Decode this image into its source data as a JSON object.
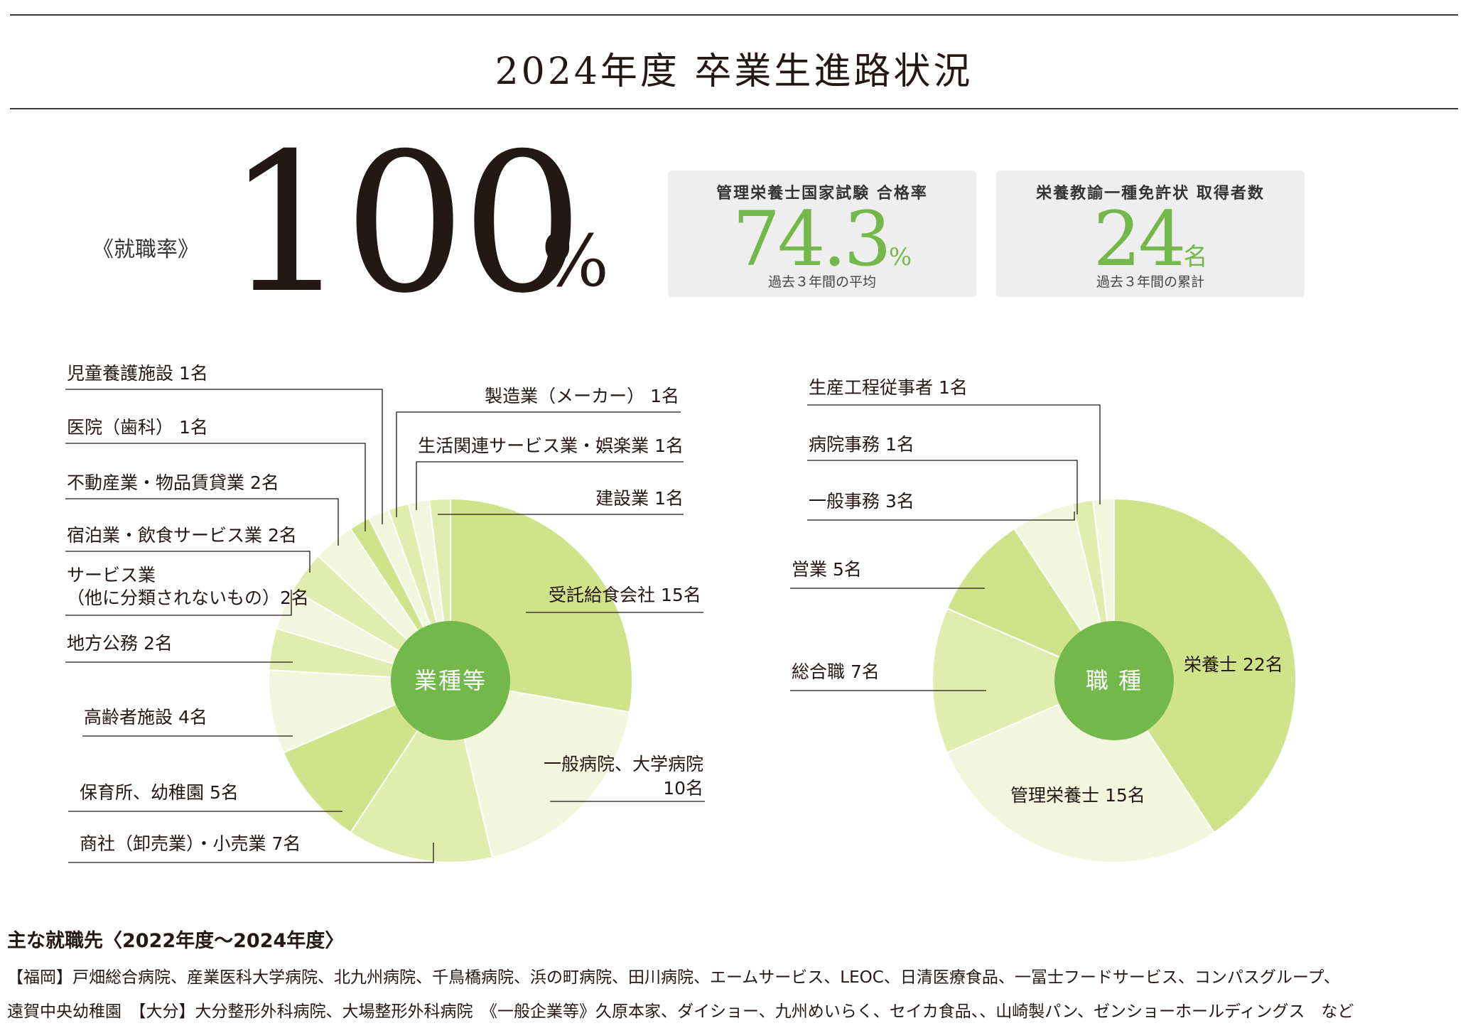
{
  "header": {
    "title": "2024年度 卒業生進路状況"
  },
  "employment_rate": {
    "label": "《就職率》",
    "value": "100",
    "unit": "%"
  },
  "stats": [
    {
      "title": "管理栄養士国家試験 合格率",
      "value": "74.3",
      "unit": "%",
      "note": "過去３年間の平均"
    },
    {
      "title": "栄養教諭一種免許状 取得者数",
      "value": "24",
      "unit": "名",
      "note": "過去３年間の累計"
    }
  ],
  "colors": {
    "accent": "#72b84b",
    "light": "#d0e28a",
    "lighter": "#e1ecaf",
    "pale": "#f2f6dc"
  },
  "chart_data": [
    {
      "type": "pie",
      "center_label": "業種等",
      "unit": "名",
      "slices": [
        {
          "label": "受託給食会社 15名",
          "value": 15
        },
        {
          "label": "一般病院、大学病院",
          "label2": "10名",
          "value": 10
        },
        {
          "label": "商社（卸売業）・小売業 7名",
          "value": 7
        },
        {
          "label": "保育所、幼稚園 5名",
          "value": 5
        },
        {
          "label": "高齢者施設 4名",
          "value": 4
        },
        {
          "label": "地方公務 2名",
          "value": 2
        },
        {
          "label": "サービス業",
          "label2": "（他に分類されないもの）2名",
          "value": 2
        },
        {
          "label": "宿泊業・飲食サービス業 2名",
          "value": 2
        },
        {
          "label": "不動産業・物品賃貸業 2名",
          "value": 2
        },
        {
          "label": "医院（歯科） 1名",
          "value": 1
        },
        {
          "label": "児童養護施設 1名",
          "value": 1
        },
        {
          "label": "製造業（メーカー） 1名",
          "value": 1
        },
        {
          "label": "生活関連サービス業・娯楽業 1名",
          "value": 1
        },
        {
          "label": "建設業 1名",
          "value": 1
        }
      ]
    },
    {
      "type": "pie",
      "center_label": "職 種",
      "unit": "名",
      "slices": [
        {
          "label": "栄養士 22名",
          "value": 22
        },
        {
          "label": "管理栄養士 15名",
          "value": 15
        },
        {
          "label": "総合職 7名",
          "value": 7
        },
        {
          "label": "営業 5名",
          "value": 5
        },
        {
          "label": "一般事務 3名",
          "value": 3
        },
        {
          "label": "病院事務 1名",
          "value": 1
        },
        {
          "label": "生産工程従事者 1名",
          "value": 1
        }
      ]
    }
  ],
  "employers": {
    "heading": "主な就職先〈2022年度〜2024年度〉",
    "line1": "【福岡】戸畑総合病院、産業医科大学病院、北九州病院、千鳥橋病院、浜の町病院、田川病院、エームサービス、LEOC、日清医療食品、一冨士フードサービス、コンパスグループ、",
    "line2": "遠賀中央幼稚園　【大分】大分整形外科病院、大場整形外科病院　《一般企業等》久原本家、ダイショー、九州めいらく、セイカ食品、、山崎製パン、ゼンショーホールディングス　など"
  }
}
